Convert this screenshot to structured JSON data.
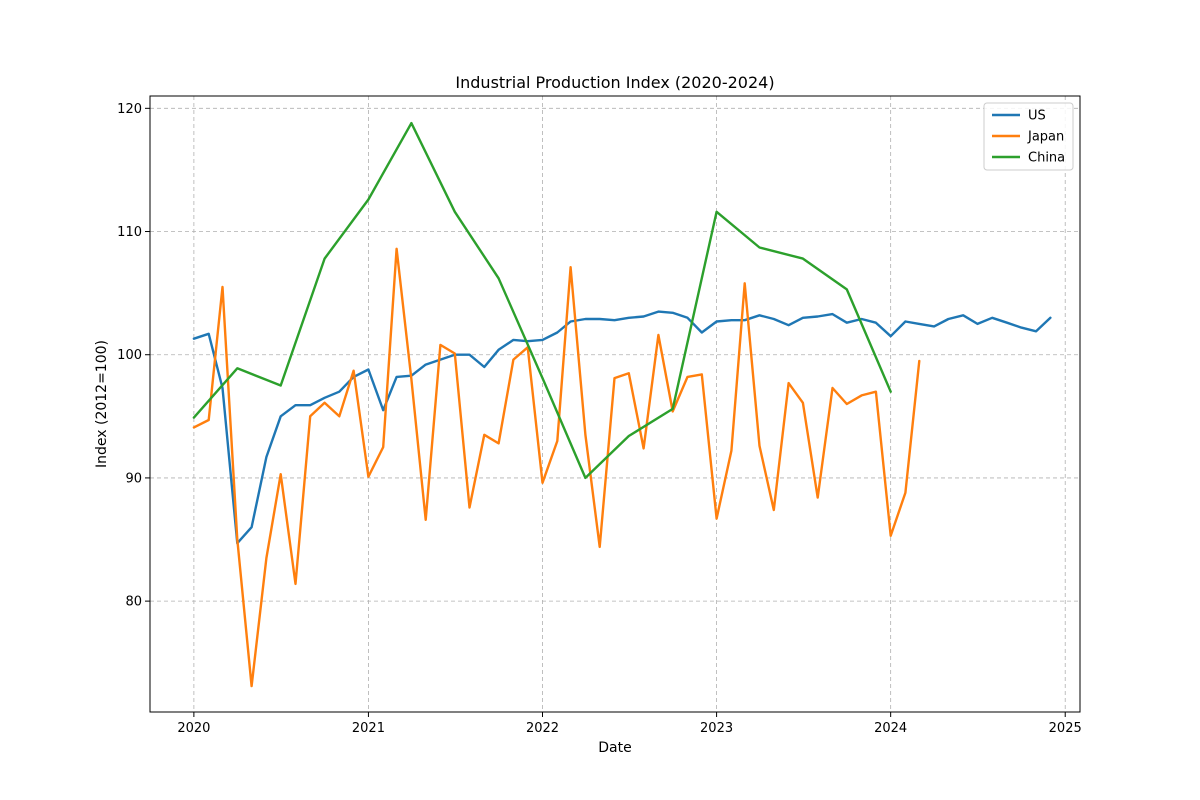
{
  "chart_data": {
    "type": "line",
    "title": "Industrial Production Index (2020-2024)",
    "xlabel": "Date",
    "ylabel": "Index (2012=100)",
    "xlim": [
      "2019-10-01",
      "2025-02-01"
    ],
    "ylim": [
      71,
      121
    ],
    "xticks": [
      {
        "date": "2020-01-01",
        "label": "2020"
      },
      {
        "date": "2021-01-01",
        "label": "2021"
      },
      {
        "date": "2022-01-01",
        "label": "2022"
      },
      {
        "date": "2023-01-01",
        "label": "2023"
      },
      {
        "date": "2024-01-01",
        "label": "2024"
      },
      {
        "date": "2025-01-01",
        "label": "2025"
      }
    ],
    "yticks": [
      80,
      90,
      100,
      110,
      120
    ],
    "grid": true,
    "legend": "top-right",
    "series": [
      {
        "name": "US",
        "color": "#1f77b4",
        "x": [
          "2020-01",
          "2020-02",
          "2020-03",
          "2020-04",
          "2020-05",
          "2020-06",
          "2020-07",
          "2020-08",
          "2020-09",
          "2020-10",
          "2020-11",
          "2020-12",
          "2021-01",
          "2021-02",
          "2021-03",
          "2021-04",
          "2021-05",
          "2021-06",
          "2021-07",
          "2021-08",
          "2021-09",
          "2021-10",
          "2021-11",
          "2021-12",
          "2022-01",
          "2022-02",
          "2022-03",
          "2022-04",
          "2022-05",
          "2022-06",
          "2022-07",
          "2022-08",
          "2022-09",
          "2022-10",
          "2022-11",
          "2022-12",
          "2023-01",
          "2023-02",
          "2023-03",
          "2023-04",
          "2023-05",
          "2023-06",
          "2023-07",
          "2023-08",
          "2023-09",
          "2023-10",
          "2023-11",
          "2023-12",
          "2024-01",
          "2024-02",
          "2024-03",
          "2024-04",
          "2024-05",
          "2024-06",
          "2024-07",
          "2024-08",
          "2024-09",
          "2024-10",
          "2024-11",
          "2024-12"
        ],
        "y": [
          101.3,
          101.7,
          97.3,
          84.7,
          86.0,
          91.7,
          95.0,
          95.9,
          95.9,
          96.5,
          97.0,
          98.2,
          98.8,
          95.5,
          98.2,
          98.3,
          99.2,
          99.6,
          100.0,
          100.0,
          99.0,
          100.4,
          101.2,
          101.1,
          101.2,
          101.8,
          102.7,
          102.9,
          102.9,
          102.8,
          103.0,
          103.1,
          103.5,
          103.4,
          103.0,
          101.8,
          102.7,
          102.8,
          102.8,
          103.2,
          102.9,
          102.4,
          103.0,
          103.1,
          103.3,
          102.6,
          102.9,
          102.6,
          101.5,
          102.7,
          102.5,
          102.3,
          102.9,
          103.2,
          102.5,
          103.0,
          102.6,
          102.2,
          101.9,
          103.0
        ]
      },
      {
        "name": "Japan",
        "color": "#ff7f0e",
        "x": [
          "2020-01",
          "2020-02",
          "2020-03",
          "2020-04",
          "2020-05",
          "2020-06",
          "2020-07",
          "2020-08",
          "2020-09",
          "2020-10",
          "2020-11",
          "2020-12",
          "2021-01",
          "2021-02",
          "2021-03",
          "2021-04",
          "2021-05",
          "2021-06",
          "2021-07",
          "2021-08",
          "2021-09",
          "2021-10",
          "2021-11",
          "2021-12",
          "2022-01",
          "2022-02",
          "2022-03",
          "2022-04",
          "2022-05",
          "2022-06",
          "2022-07",
          "2022-08",
          "2022-09",
          "2022-10",
          "2022-11",
          "2022-12",
          "2023-01",
          "2023-02",
          "2023-03",
          "2023-04",
          "2023-05",
          "2023-06",
          "2023-07",
          "2023-08",
          "2023-09",
          "2023-10",
          "2023-11",
          "2023-12",
          "2024-01",
          "2024-02",
          "2024-03"
        ],
        "y": [
          94.1,
          94.7,
          105.5,
          85.0,
          73.1,
          83.5,
          90.3,
          81.4,
          95.0,
          96.1,
          95.0,
          98.7,
          90.1,
          92.5,
          108.6,
          98.0,
          86.6,
          100.8,
          100.1,
          87.6,
          93.5,
          92.8,
          99.6,
          100.6,
          89.6,
          93.0,
          107.1,
          93.5,
          84.4,
          98.1,
          98.5,
          92.4,
          101.6,
          95.4,
          98.2,
          98.4,
          86.7,
          92.2,
          105.8,
          92.6,
          87.4,
          97.7,
          96.1,
          88.4,
          97.3,
          96.0,
          96.7,
          97.0,
          85.3,
          88.8,
          99.5
        ]
      },
      {
        "name": "China",
        "color": "#2ca02c",
        "x": [
          "2020-01",
          "2020-04",
          "2020-07",
          "2020-10",
          "2021-01",
          "2021-04",
          "2021-07",
          "2021-10",
          "2022-01",
          "2022-04",
          "2022-07",
          "2022-10",
          "2023-01",
          "2023-04",
          "2023-07",
          "2023-10",
          "2024-01"
        ],
        "y": [
          94.9,
          98.9,
          97.5,
          107.8,
          112.6,
          118.8,
          111.6,
          106.2,
          98.1,
          90.0,
          93.4,
          95.6,
          111.6,
          108.7,
          107.8,
          105.3,
          97.0
        ]
      }
    ]
  }
}
